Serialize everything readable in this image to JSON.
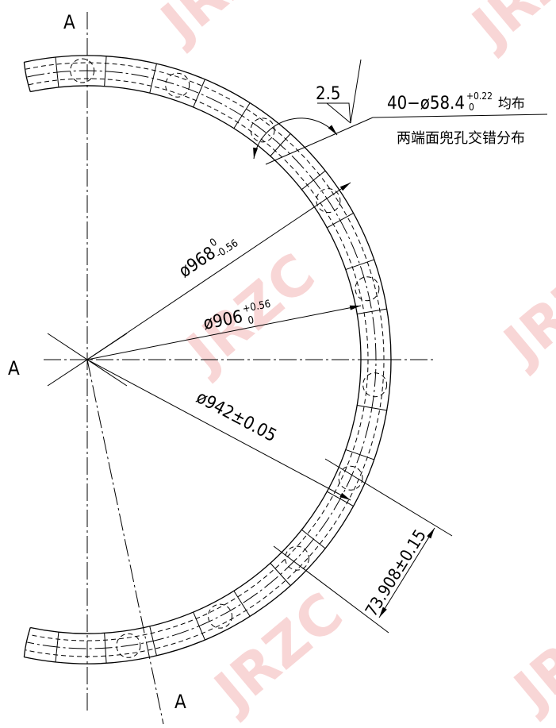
{
  "section_labels": {
    "top": "A",
    "left": "A",
    "bottom": "A"
  },
  "roughness": "2.5",
  "hole_note": {
    "main": "40−ø58.4",
    "upper": "+0.22",
    "lower": "0",
    "suffix": "均布",
    "line2": "两端面兜孔交错分布"
  },
  "dims": {
    "d968": {
      "main": "ø968",
      "upper": "0",
      "lower": "-0.56"
    },
    "d906": {
      "main": "ø906",
      "upper": "+0.56",
      "lower": "0"
    },
    "d942": "ø942±0.05",
    "width": "73.908±0.15"
  },
  "watermark": "JRZC"
}
